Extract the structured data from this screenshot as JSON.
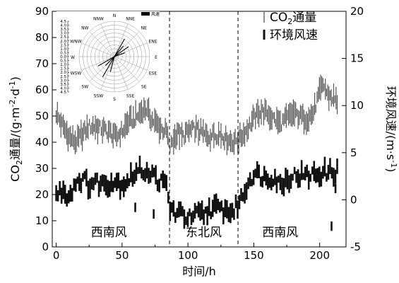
{
  "chart_data": {
    "type": "line",
    "x": {
      "label": "时间/h",
      "ticks": [
        0,
        50,
        100,
        150,
        200
      ],
      "range": [
        -3,
        220
      ]
    },
    "y_left": {
      "label": "CO2通量/(g·m-2·d-1)",
      "ticks": [
        0,
        10,
        20,
        30,
        40,
        50,
        60,
        70,
        80,
        90
      ],
      "range": [
        0,
        90
      ]
    },
    "y_right": {
      "label": "环境风速/(m·s-1)",
      "ticks": [
        -5,
        0,
        5,
        10,
        15,
        20
      ],
      "range": [
        -5,
        20
      ]
    },
    "dividers": [
      86,
      138
    ],
    "regions": [
      {
        "label": "西南风",
        "x_center": 40
      },
      {
        "label": "东北风",
        "x_center": 112
      },
      {
        "label": "西南风",
        "x_center": 170
      }
    ],
    "legend": [
      "CO₂通量",
      "环境风速"
    ],
    "series": [
      {
        "name": "CO₂通量",
        "axis": "left",
        "style": "range-bars",
        "color": "#555555",
        "x": [
          0,
          5,
          10,
          15,
          20,
          25,
          30,
          35,
          40,
          45,
          50,
          55,
          60,
          65,
          68,
          72,
          76,
          80,
          84,
          86,
          88,
          92,
          96,
          100,
          105,
          110,
          115,
          120,
          125,
          130,
          135,
          140,
          145,
          150,
          155,
          160,
          165,
          170,
          175,
          180,
          185,
          190,
          195,
          200,
          203,
          206,
          210,
          214
        ],
        "y": [
          51,
          46,
          42,
          40,
          43,
          46,
          46,
          45,
          44,
          42,
          44,
          48,
          49,
          52,
          53,
          49,
          47,
          45,
          44,
          37,
          40,
          44,
          42,
          44,
          45,
          44,
          42,
          43,
          43,
          41,
          40,
          42,
          45,
          49,
          52,
          51,
          49,
          47,
          49,
          51,
          50,
          49,
          51,
          59,
          62,
          58,
          57,
          55
        ]
      },
      {
        "name": "环境风速",
        "axis": "right",
        "style": "blocks",
        "color": "#111111",
        "x": [
          0,
          5,
          10,
          15,
          20,
          25,
          30,
          35,
          40,
          45,
          50,
          55,
          60,
          65,
          70,
          75,
          80,
          84,
          86,
          88,
          92,
          96,
          100,
          104,
          108,
          112,
          116,
          120,
          125,
          130,
          135,
          138,
          142,
          146,
          150,
          155,
          160,
          165,
          170,
          175,
          180,
          185,
          190,
          195,
          200,
          205,
          210,
          214
        ],
        "y": [
          0.5,
          1.0,
          0.4,
          2.0,
          2.2,
          1.6,
          1.9,
          1.7,
          1.8,
          2.0,
          1.6,
          2.2,
          2.8,
          3.2,
          3.0,
          2.4,
          1.8,
          1.5,
          -1.0,
          -1.0,
          -1.6,
          -1.4,
          -2.0,
          -1.8,
          -1.5,
          -1.6,
          -1.0,
          -0.9,
          -1.0,
          -1.2,
          -1.2,
          -0.4,
          0.5,
          2.0,
          2.8,
          2.6,
          2.3,
          2.5,
          1.6,
          2.2,
          2.6,
          2.6,
          2.5,
          2.7,
          2.8,
          2.9,
          3.0,
          3.0
        ]
      }
    ],
    "inset": {
      "type": "wind-rose",
      "directions": [
        "N",
        "NNE",
        "NE",
        "ENE",
        "E",
        "ESE",
        "SE",
        "SSE",
        "S",
        "SSW",
        "SW",
        "WSW",
        "W",
        "WNW",
        "NW",
        "NNW"
      ],
      "radial_ticks": [
        "4.5",
        "4.0",
        "3.5",
        "3.0",
        "2.5",
        "2.0",
        "1.5",
        "1.0",
        "0.5",
        "0.0",
        "0.5",
        "1.0",
        "1.5",
        "2.0",
        "2.5",
        "3.0",
        "3.5",
        "4.0",
        "4.5"
      ],
      "legend": "风速",
      "spokes": [
        {
          "deg": 30,
          "len": 2.6
        },
        {
          "deg": 40,
          "len": 1.8
        },
        {
          "deg": 55,
          "len": 2.2
        },
        {
          "deg": 70,
          "len": 1.4
        },
        {
          "deg": 210,
          "len": 3.0
        },
        {
          "deg": 225,
          "len": 1.6
        },
        {
          "deg": 240,
          "len": 2.4
        },
        {
          "deg": 195,
          "len": 2.0
        }
      ]
    }
  }
}
